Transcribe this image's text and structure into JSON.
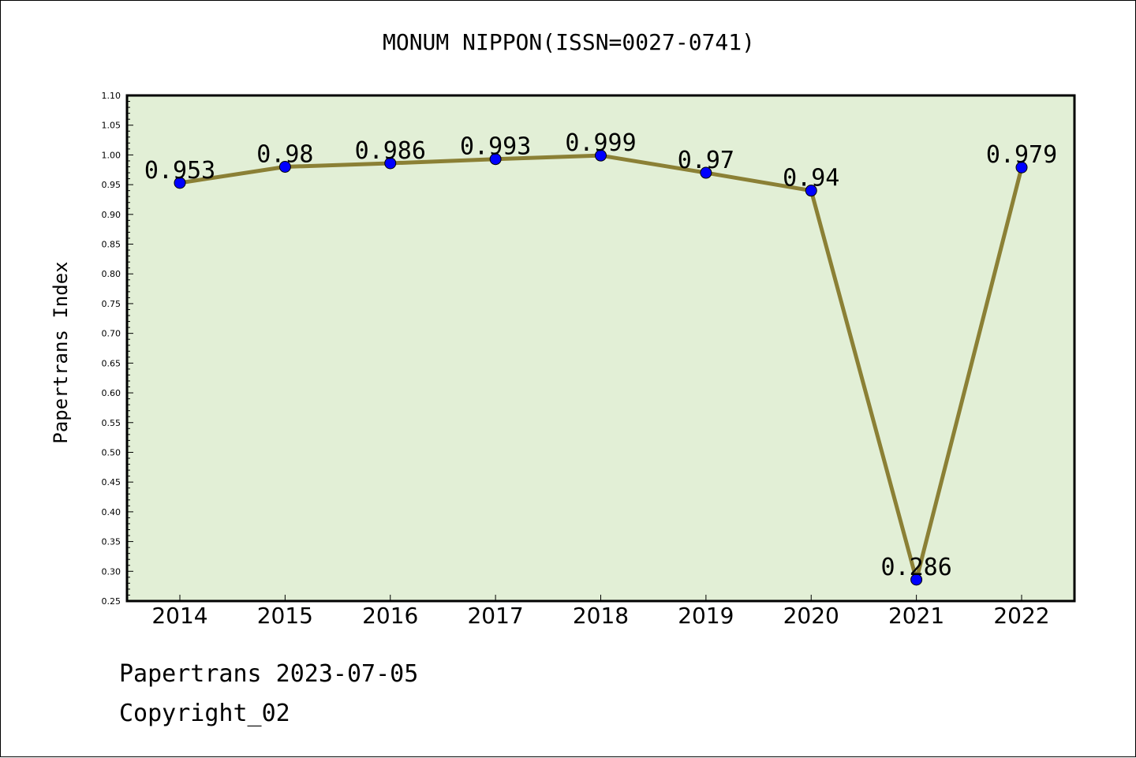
{
  "chart_data": {
    "type": "line",
    "title": "MONUM NIPPON(ISSN=0027-0741)",
    "xlabel": "",
    "ylabel": "Papertrans Index",
    "categories": [
      "2014",
      "2015",
      "2016",
      "2017",
      "2018",
      "2019",
      "2020",
      "2021",
      "2022"
    ],
    "series": [
      {
        "values": [
          0.953,
          0.98,
          0.986,
          0.993,
          0.999,
          0.97,
          0.94,
          0.286,
          0.979
        ]
      }
    ],
    "data_labels": [
      "0.953",
      "0.98",
      "0.986",
      "0.993",
      "0.999",
      "0.97",
      "0.94",
      "0.286",
      "0.979"
    ],
    "ylim": [
      0.25,
      1.1
    ],
    "yticks": [
      "0.25",
      "0.30",
      "0.35",
      "0.40",
      "0.45",
      "0.50",
      "0.55",
      "0.60",
      "0.65",
      "0.70",
      "0.75",
      "0.80",
      "0.85",
      "0.90",
      "0.95",
      "1.00",
      "1.05",
      "1.10"
    ],
    "grid": false,
    "colors": {
      "plot_background": "#e2efd6",
      "line": "#8b8035",
      "marker": "#0000ff"
    }
  },
  "footer": {
    "date_text": "Papertrans 2023-07-05",
    "copyright_text": "Copyright_02"
  }
}
